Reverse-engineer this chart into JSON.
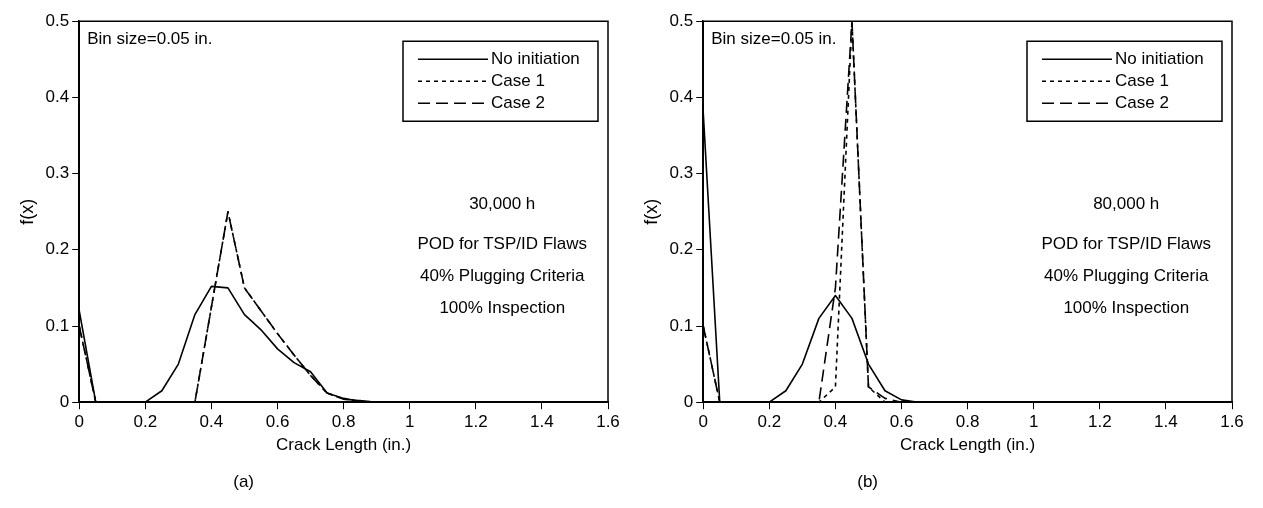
{
  "chart_data": [
    {
      "type": "line",
      "xlabel": "Crack Length (in.)",
      "ylabel": "f(x)",
      "xlim": [
        0,
        1.6
      ],
      "ylim": [
        0,
        0.5
      ],
      "xticks": [
        0,
        0.2,
        0.4,
        0.6,
        0.8,
        1,
        1.2,
        1.4,
        1.6
      ],
      "yticks": [
        0,
        0.1,
        0.2,
        0.3,
        0.4,
        0.5
      ],
      "grid": false,
      "legend": "top right",
      "marker": "none",
      "annotations": [
        "Bin size=0.05 in.",
        "30,000 h",
        "POD for TSP/ID Flaws",
        "40% Plugging Criteria",
        "100% Inspection",
        "(a)"
      ],
      "series": [
        {
          "name": "No initiation",
          "color": "#000000",
          "line_style": "solid",
          "x": [
            0,
            0.05,
            0.2,
            0.25,
            0.3,
            0.35,
            0.4,
            0.45,
            0.5,
            0.55,
            0.6,
            0.65,
            0.7,
            0.75,
            0.8,
            0.85,
            0.9,
            1.6
          ],
          "values": [
            0.12,
            0,
            0,
            0.015,
            0.05,
            0.115,
            0.152,
            0.15,
            0.115,
            0.095,
            0.07,
            0.052,
            0.04,
            0.012,
            0.005,
            0.001,
            0,
            0
          ]
        },
        {
          "name": "Case 1",
          "color": "#000000",
          "line_style": "dotted",
          "x": [
            0,
            0.05,
            0.35,
            0.45,
            0.5,
            0.55,
            0.6,
            0.65,
            0.7,
            0.75,
            0.8,
            0.9,
            1.6
          ],
          "values": [
            0.1,
            0,
            0,
            0.25,
            0.15,
            0.12,
            0.09,
            0.062,
            0.035,
            0.012,
            0.004,
            0,
            0
          ]
        },
        {
          "name": "Case 2",
          "color": "#000000",
          "line_style": "dashed",
          "x": [
            0,
            0.05,
            0.35,
            0.45,
            0.5,
            0.55,
            0.6,
            0.65,
            0.7,
            0.75,
            0.8,
            0.9,
            1.6
          ],
          "values": [
            0.1,
            0,
            0,
            0.25,
            0.15,
            0.12,
            0.09,
            0.062,
            0.035,
            0.012,
            0.004,
            0,
            0
          ]
        }
      ]
    },
    {
      "type": "line",
      "xlabel": "Crack Length (in.)",
      "ylabel": "f(x)",
      "xlim": [
        0,
        1.6
      ],
      "ylim": [
        0,
        0.5
      ],
      "xticks": [
        0,
        0.2,
        0.4,
        0.6,
        0.8,
        1,
        1.2,
        1.4,
        1.6
      ],
      "yticks": [
        0,
        0.1,
        0.2,
        0.3,
        0.4,
        0.5
      ],
      "grid": false,
      "legend": "top right",
      "marker": "none",
      "annotations": [
        "Bin size=0.05 in.",
        "80,000 h",
        "POD for TSP/ID Flaws",
        "40% Plugging Criteria",
        "100% Inspection",
        "(b)"
      ],
      "series": [
        {
          "name": "No initiation",
          "color": "#000000",
          "line_style": "solid",
          "x": [
            0,
            0.05,
            0.2,
            0.25,
            0.3,
            0.35,
            0.4,
            0.45,
            0.5,
            0.55,
            0.6,
            0.65,
            1.6
          ],
          "values": [
            0.38,
            0,
            0,
            0.015,
            0.05,
            0.11,
            0.14,
            0.11,
            0.05,
            0.015,
            0.003,
            0,
            0
          ]
        },
        {
          "name": "Case 1",
          "color": "#000000",
          "line_style": "dotted",
          "x": [
            0,
            0.05,
            0.35,
            0.4,
            0.45,
            0.5,
            0.55,
            1.6
          ],
          "values": [
            0.1,
            0,
            0,
            0.02,
            0.5,
            0.02,
            0,
            0
          ]
        },
        {
          "name": "Case 2",
          "color": "#000000",
          "line_style": "dashed",
          "x": [
            0,
            0.05,
            0.35,
            0.4,
            0.45,
            0.5,
            0.55,
            0.6,
            1.6
          ],
          "values": [
            0.1,
            0,
            0,
            0.15,
            0.5,
            0.02,
            0.005,
            0,
            0
          ]
        }
      ]
    }
  ]
}
